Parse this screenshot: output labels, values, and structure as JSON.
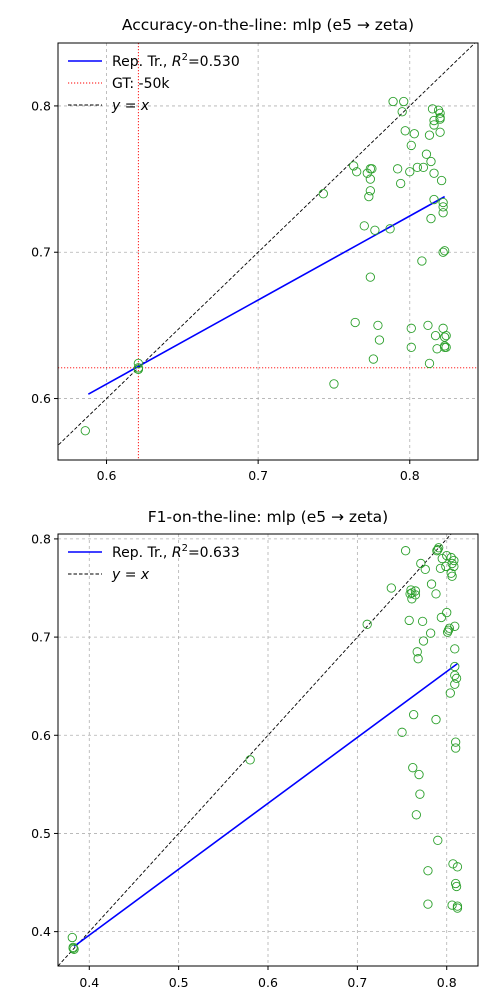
{
  "chart_data": [
    {
      "type": "scatter",
      "title": "Accuracy-on-the-line: mlp (e5 → zeta)",
      "xlabel": "",
      "ylabel": "",
      "xlim": [
        0.568,
        0.845
      ],
      "ylim": [
        0.558,
        0.843
      ],
      "xticks": [
        0.6,
        0.7,
        0.8
      ],
      "yticks": [
        0.6,
        0.7,
        0.8
      ],
      "grid": true,
      "legend_position": "top-left",
      "legend": [
        {
          "label_main": "Rep. Tr., ",
          "label_math": "R",
          "label_sup": "2",
          "label_tail": "=0.530",
          "style": "solid",
          "color": "#0000ff"
        },
        {
          "label_main": "GT: -50k",
          "style": "dotted",
          "color": "#ff0000"
        },
        {
          "label_main": "",
          "label_math": "y = x",
          "style": "dashed",
          "color": "#000000"
        }
      ],
      "fit_line": {
        "x": [
          0.588,
          0.823
        ],
        "y": [
          0.603,
          0.738
        ],
        "color": "#0000ff"
      },
      "identity_line": true,
      "gt_lines": {
        "x": 0.621,
        "y": 0.621,
        "color": "#ff0000"
      },
      "point_color": "#2ca02c",
      "points": [
        [
          0.586,
          0.578
        ],
        [
          0.621,
          0.624
        ],
        [
          0.621,
          0.62
        ],
        [
          0.621,
          0.621
        ],
        [
          0.621,
          0.62
        ],
        [
          0.743,
          0.74
        ],
        [
          0.75,
          0.61
        ],
        [
          0.763,
          0.759
        ],
        [
          0.765,
          0.755
        ],
        [
          0.764,
          0.652
        ],
        [
          0.77,
          0.718
        ],
        [
          0.772,
          0.754
        ],
        [
          0.773,
          0.738
        ],
        [
          0.774,
          0.742
        ],
        [
          0.774,
          0.75
        ],
        [
          0.774,
          0.757
        ],
        [
          0.775,
          0.757
        ],
        [
          0.774,
          0.683
        ],
        [
          0.776,
          0.627
        ],
        [
          0.777,
          0.715
        ],
        [
          0.779,
          0.65
        ],
        [
          0.78,
          0.64
        ],
        [
          0.787,
          0.716
        ],
        [
          0.789,
          0.803
        ],
        [
          0.792,
          0.757
        ],
        [
          0.794,
          0.747
        ],
        [
          0.795,
          0.796
        ],
        [
          0.796,
          0.803
        ],
        [
          0.797,
          0.783
        ],
        [
          0.8,
          0.755
        ],
        [
          0.801,
          0.773
        ],
        [
          0.801,
          0.648
        ],
        [
          0.801,
          0.635
        ],
        [
          0.803,
          0.781
        ],
        [
          0.805,
          0.758
        ],
        [
          0.808,
          0.694
        ],
        [
          0.809,
          0.758
        ],
        [
          0.811,
          0.767
        ],
        [
          0.812,
          0.65
        ],
        [
          0.813,
          0.624
        ],
        [
          0.813,
          0.78
        ],
        [
          0.814,
          0.723
        ],
        [
          0.814,
          0.762
        ],
        [
          0.815,
          0.798
        ],
        [
          0.816,
          0.787
        ],
        [
          0.816,
          0.79
        ],
        [
          0.816,
          0.754
        ],
        [
          0.816,
          0.736
        ],
        [
          0.817,
          0.643
        ],
        [
          0.818,
          0.634
        ],
        [
          0.819,
          0.797
        ],
        [
          0.82,
          0.795
        ],
        [
          0.82,
          0.792
        ],
        [
          0.82,
          0.791
        ],
        [
          0.82,
          0.782
        ],
        [
          0.821,
          0.749
        ],
        [
          0.822,
          0.734
        ],
        [
          0.822,
          0.731
        ],
        [
          0.822,
          0.727
        ],
        [
          0.822,
          0.7
        ],
        [
          0.822,
          0.648
        ],
        [
          0.823,
          0.701
        ],
        [
          0.823,
          0.642
        ],
        [
          0.823,
          0.635
        ],
        [
          0.823,
          0.636
        ],
        [
          0.824,
          0.643
        ],
        [
          0.824,
          0.635
        ]
      ]
    },
    {
      "type": "scatter",
      "title": "F1-on-the-line: mlp (e5 → zeta)",
      "xlabel": "",
      "ylabel": "",
      "xlim": [
        0.365,
        0.835
      ],
      "ylim": [
        0.365,
        0.805
      ],
      "xticks": [
        0.4,
        0.5,
        0.6,
        0.7,
        0.8
      ],
      "yticks": [
        0.4,
        0.5,
        0.6,
        0.7,
        0.8
      ],
      "grid": true,
      "legend_position": "top-left",
      "legend": [
        {
          "label_main": "Rep. Tr., ",
          "label_math": "R",
          "label_sup": "2",
          "label_tail": "=0.633",
          "style": "solid",
          "color": "#0000ff"
        },
        {
          "label_main": "",
          "label_math": "y = x",
          "style": "dashed",
          "color": "#000000"
        }
      ],
      "fit_line": {
        "x": [
          0.383,
          0.812
        ],
        "y": [
          0.385,
          0.673
        ],
        "color": "#0000ff"
      },
      "identity_line": true,
      "point_color": "#2ca02c",
      "points": [
        [
          0.381,
          0.394
        ],
        [
          0.382,
          0.383
        ],
        [
          0.382,
          0.384
        ],
        [
          0.383,
          0.382
        ],
        [
          0.58,
          0.575
        ],
        [
          0.711,
          0.713
        ],
        [
          0.738,
          0.75
        ],
        [
          0.75,
          0.603
        ],
        [
          0.754,
          0.788
        ],
        [
          0.758,
          0.717
        ],
        [
          0.759,
          0.744
        ],
        [
          0.76,
          0.748
        ],
        [
          0.761,
          0.745
        ],
        [
          0.761,
          0.739
        ],
        [
          0.762,
          0.567
        ],
        [
          0.763,
          0.621
        ],
        [
          0.765,
          0.743
        ],
        [
          0.765,
          0.747
        ],
        [
          0.766,
          0.519
        ],
        [
          0.767,
          0.685
        ],
        [
          0.768,
          0.678
        ],
        [
          0.769,
          0.56
        ],
        [
          0.77,
          0.54
        ],
        [
          0.771,
          0.775
        ],
        [
          0.773,
          0.716
        ],
        [
          0.774,
          0.696
        ],
        [
          0.776,
          0.769
        ],
        [
          0.779,
          0.462
        ],
        [
          0.779,
          0.428
        ],
        [
          0.782,
          0.704
        ],
        [
          0.783,
          0.754
        ],
        [
          0.788,
          0.616
        ],
        [
          0.788,
          0.744
        ],
        [
          0.789,
          0.788
        ],
        [
          0.79,
          0.789
        ],
        [
          0.79,
          0.493
        ],
        [
          0.791,
          0.791
        ],
        [
          0.793,
          0.77
        ],
        [
          0.794,
          0.72
        ],
        [
          0.795,
          0.78
        ],
        [
          0.799,
          0.772
        ],
        [
          0.8,
          0.783
        ],
        [
          0.8,
          0.725
        ],
        [
          0.801,
          0.705
        ],
        [
          0.802,
          0.707
        ],
        [
          0.803,
          0.709
        ],
        [
          0.804,
          0.643
        ],
        [
          0.805,
          0.781
        ],
        [
          0.805,
          0.765
        ],
        [
          0.806,
          0.775
        ],
        [
          0.806,
          0.762
        ],
        [
          0.806,
          0.427
        ],
        [
          0.807,
          0.469
        ],
        [
          0.808,
          0.778
        ],
        [
          0.808,
          0.772
        ],
        [
          0.809,
          0.711
        ],
        [
          0.809,
          0.688
        ],
        [
          0.809,
          0.67
        ],
        [
          0.809,
          0.661
        ],
        [
          0.809,
          0.652
        ],
        [
          0.81,
          0.593
        ],
        [
          0.81,
          0.587
        ],
        [
          0.81,
          0.449
        ],
        [
          0.811,
          0.446
        ],
        [
          0.811,
          0.658
        ],
        [
          0.812,
          0.466
        ],
        [
          0.812,
          0.426
        ],
        [
          0.812,
          0.424
        ]
      ]
    }
  ]
}
